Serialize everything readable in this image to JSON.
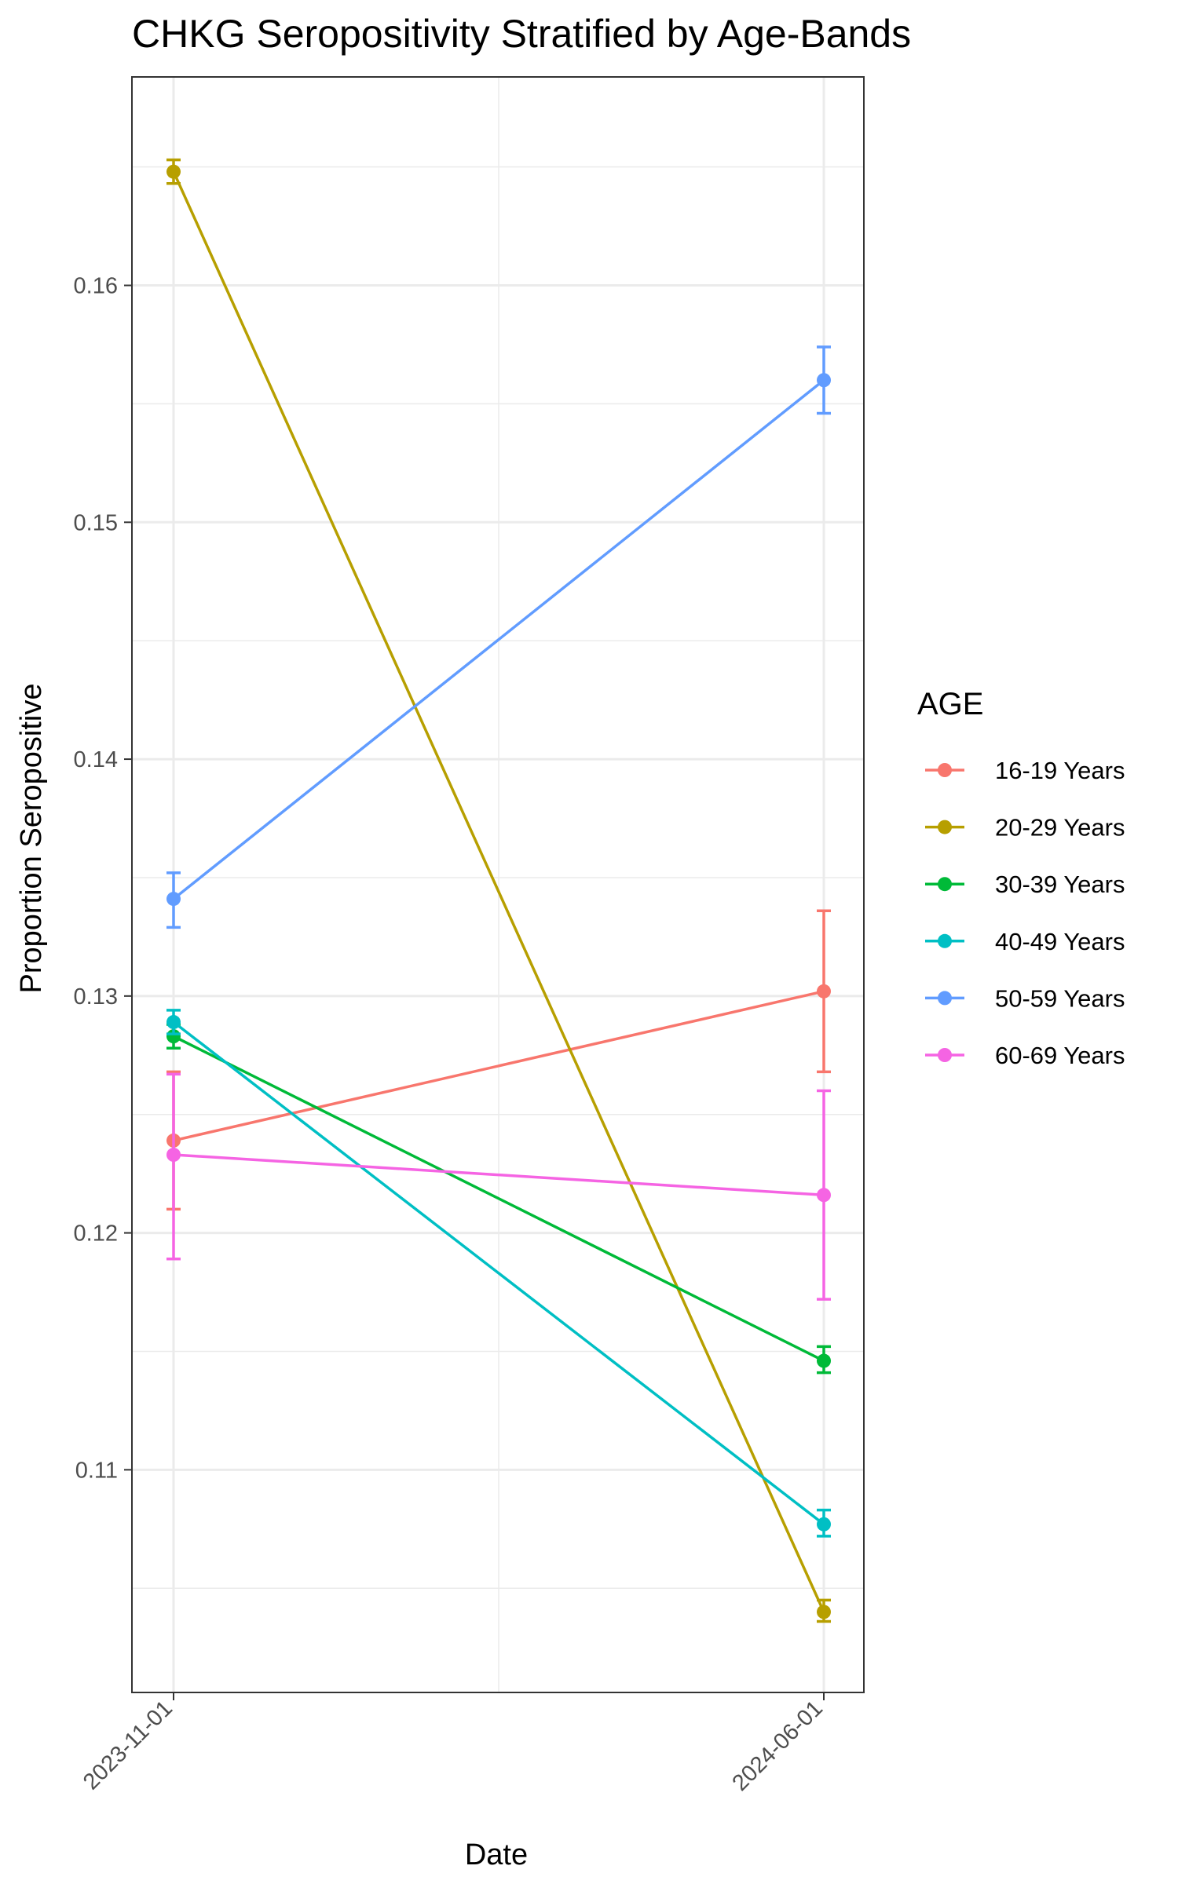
{
  "chart_data": {
    "type": "line",
    "title": "CHKG Seropositivity Stratified by Age-Bands",
    "xlabel": "Date",
    "ylabel": "Proportion Seropositive",
    "x": [
      "2023-11-01",
      "2024-06-01"
    ],
    "ylim": [
      0.1006,
      0.1688
    ],
    "yticks": [
      0.11,
      0.12,
      0.13,
      0.14,
      0.15,
      0.16
    ],
    "ytick_labels": [
      "0.11",
      "0.12",
      "0.13",
      "0.14",
      "0.15",
      "0.16"
    ],
    "xtick_labels": [
      "2023-11-01",
      "2024-06-01"
    ],
    "grid": true,
    "error_bars": true,
    "legend": {
      "title": "AGE",
      "position": "right"
    },
    "series": [
      {
        "name": "16-19 Years",
        "color": "#F8766D",
        "values": [
          0.1239,
          0.1302
        ],
        "lower": [
          0.121,
          0.1268
        ],
        "upper": [
          0.1268,
          0.1336
        ]
      },
      {
        "name": "20-29 Years",
        "color": "#B79F00",
        "values": [
          0.1648,
          0.104
        ],
        "lower": [
          0.1643,
          0.1036
        ],
        "upper": [
          0.1653,
          0.1045
        ]
      },
      {
        "name": "30-39 Years",
        "color": "#00BA38",
        "values": [
          0.1283,
          0.1146
        ],
        "lower": [
          0.1278,
          0.1141
        ],
        "upper": [
          0.1288,
          0.1152
        ]
      },
      {
        "name": "40-49 Years",
        "color": "#00BFC4",
        "values": [
          0.1289,
          0.1077
        ],
        "lower": [
          0.1284,
          0.1072
        ],
        "upper": [
          0.1294,
          0.1083
        ]
      },
      {
        "name": "50-59 Years",
        "color": "#619CFF",
        "values": [
          0.1341,
          0.156
        ],
        "lower": [
          0.1329,
          0.1546
        ],
        "upper": [
          0.1352,
          0.1574
        ]
      },
      {
        "name": "60-69 Years",
        "color": "#F564E3",
        "values": [
          0.1233,
          0.1216
        ],
        "lower": [
          0.1189,
          0.1172
        ],
        "upper": [
          0.1267,
          0.126
        ]
      }
    ]
  }
}
